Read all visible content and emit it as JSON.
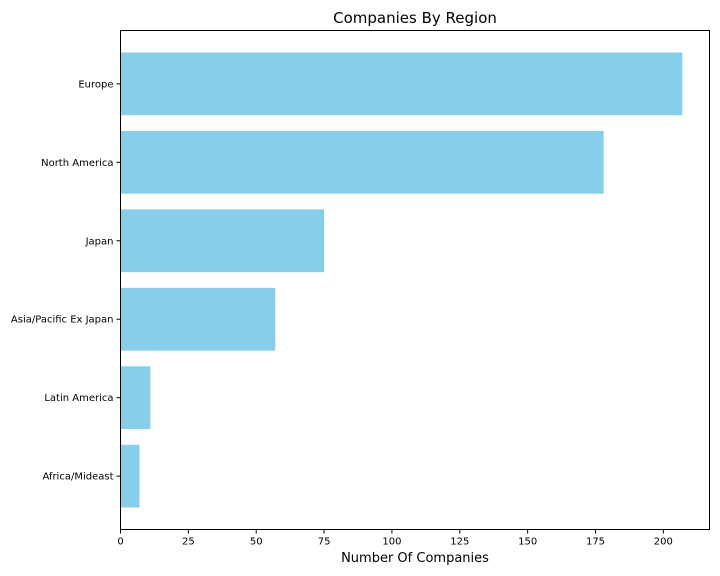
{
  "chart_data": {
    "type": "bar",
    "orientation": "horizontal",
    "title": "Companies By Region",
    "xlabel": "Number Of Companies",
    "ylabel": "",
    "categories": [
      "Europe",
      "North America",
      "Japan",
      "Asia/Pacific Ex Japan",
      "Latin America",
      "Africa/Mideast"
    ],
    "values": [
      207,
      178,
      75,
      57,
      11,
      7
    ],
    "xlim": [
      0,
      217
    ],
    "xticks": [
      0,
      25,
      50,
      75,
      100,
      125,
      150,
      175,
      200
    ],
    "bar_color": "#87ceeb",
    "grid": false,
    "legend": "none"
  }
}
